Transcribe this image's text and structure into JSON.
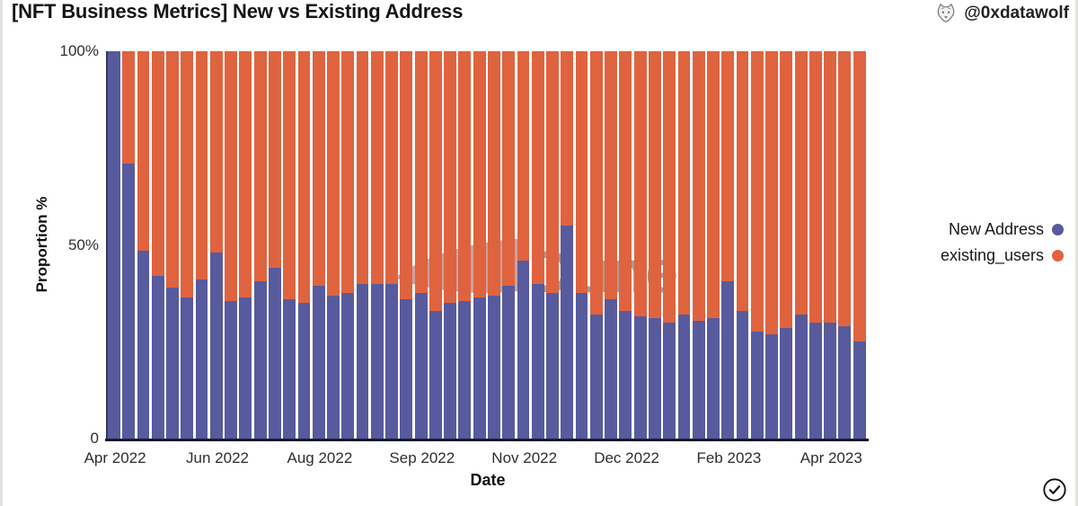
{
  "page": {
    "title": "[NFT Business Metrics] New vs Existing Address",
    "author_handle": "@0xdatawolf",
    "watermark": "Dune"
  },
  "chart_data": {
    "type": "bar",
    "variant": "100-percent-stacked",
    "title": "[NFT Business Metrics] New vs Existing Address",
    "xlabel": "Date",
    "ylabel": "Proportion %",
    "ylim": [
      0,
      100
    ],
    "unit": "%",
    "grid": false,
    "legend_position": "right",
    "y_tick_labels": [
      "100%",
      "50%",
      "0"
    ],
    "x_tick_labels": [
      "Apr 2022",
      "Jun 2022",
      "Aug 2022",
      "Sep 2022",
      "Nov 2022",
      "Dec 2022",
      "Feb 2023",
      "Apr 2023"
    ],
    "x_tick_bar_indices": [
      0,
      7,
      14,
      21,
      28,
      35,
      42,
      49
    ],
    "series": [
      {
        "name": "New Address",
        "color": "#575A9D",
        "values": [
          100,
          71,
          48.5,
          42,
          39,
          36.5,
          41,
          48,
          35.5,
          36.5,
          40.5,
          44,
          36,
          35,
          39.5,
          37,
          37.5,
          40,
          40,
          40,
          36,
          37.5,
          33,
          35,
          35.5,
          36.5,
          37,
          39.5,
          46,
          40,
          37.5,
          55,
          37.5,
          32,
          36,
          33,
          31.5,
          31,
          30,
          32,
          30.5,
          31,
          40.5,
          33,
          27.5,
          27,
          28.5,
          32,
          30,
          30,
          29,
          25
        ]
      },
      {
        "name": "existing_users",
        "color": "#E0633F",
        "values": [
          0,
          29,
          51.5,
          58,
          61,
          63.5,
          59,
          52,
          64.5,
          63.5,
          59.5,
          56,
          64,
          65,
          60.5,
          63,
          62.5,
          60,
          60,
          60,
          64,
          62.5,
          67,
          65,
          64.5,
          63.5,
          63,
          60.5,
          54,
          60,
          62.5,
          45,
          62.5,
          68,
          64,
          67,
          68.5,
          69,
          70,
          68,
          69.5,
          69,
          59.5,
          67,
          72.5,
          73,
          71.5,
          68,
          70,
          70,
          71,
          75
        ]
      }
    ]
  },
  "legend": {
    "items": [
      {
        "label": "New Address",
        "color": "#575A9D"
      },
      {
        "label": "existing_users",
        "color": "#E0633F"
      }
    ]
  },
  "icons": {
    "avatar": "wolf-sketch-avatar",
    "badge": "check-circle"
  }
}
